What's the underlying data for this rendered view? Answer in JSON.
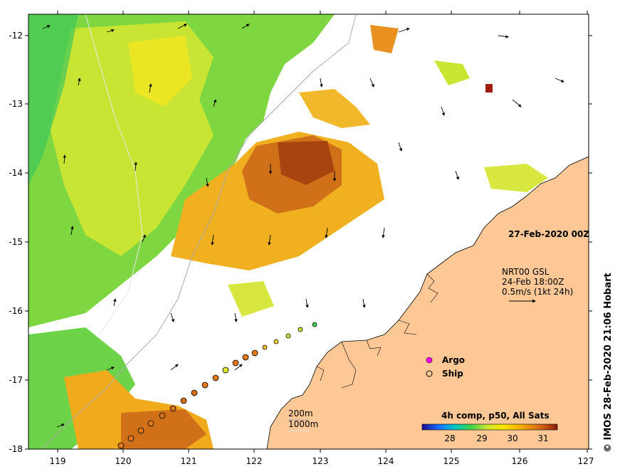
{
  "map": {
    "date_label": "27-Feb-2020 00Z",
    "current_legend": {
      "line1": "NRT00 GSL",
      "line2": "24-Feb 18:00Z",
      "line3": "0.5m/s (1kt 24h)"
    },
    "markers_legend": {
      "argo": "Argo",
      "ship": "Ship"
    },
    "depth_legend": {
      "line1": "200m",
      "line2": "1000m"
    },
    "colorbar": {
      "title": "4h comp, p50, All Sats",
      "ticks": [
        "28",
        "29",
        "30",
        "31"
      ],
      "colors": [
        "#1c0a8c",
        "#1a6cff",
        "#00c8c8",
        "#3fd24a",
        "#c8e632",
        "#ffe600",
        "#f5b400",
        "#e07818",
        "#b8480e",
        "#8a1a0a"
      ]
    },
    "credit": "© IMOS 28-Feb-2020 21:06 Hobart",
    "x_ticks": [
      "119",
      "120",
      "121",
      "122",
      "123",
      "124",
      "125",
      "126",
      "127"
    ],
    "y_ticks": [
      "-12",
      "-13",
      "-14",
      "-15",
      "-16",
      "-17",
      "-18"
    ],
    "colors": {
      "land": "#fdc896",
      "ocean_nodata": "#ffffff",
      "argo": "#ff00ff"
    }
  }
}
